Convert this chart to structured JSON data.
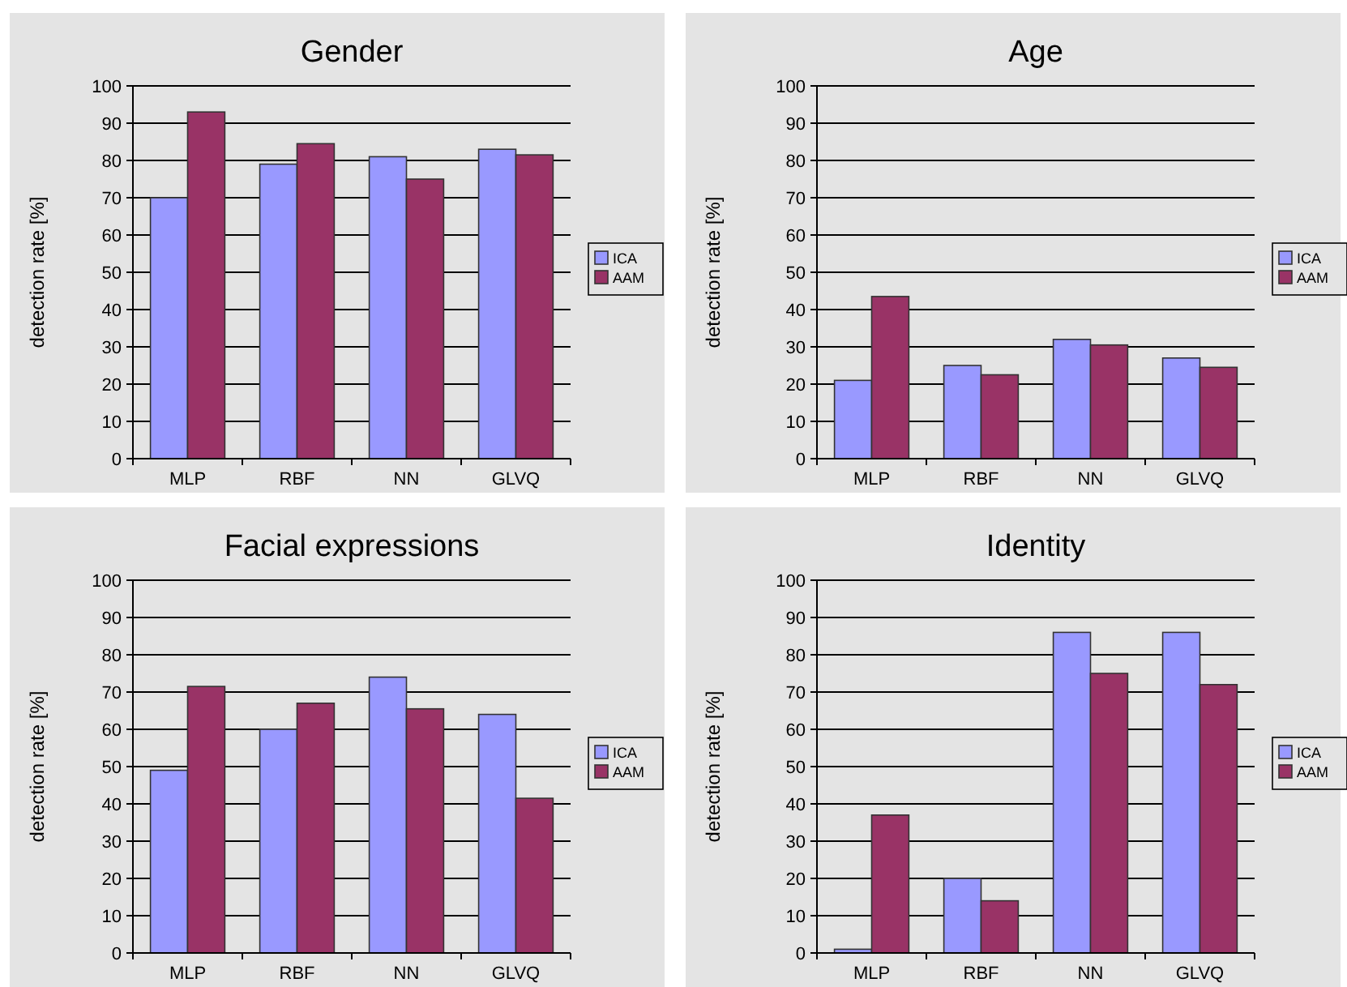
{
  "chart_data": [
    {
      "type": "bar",
      "title": "Gender",
      "ylabel": "detection rate [%]",
      "categories": [
        "MLP",
        "RBF",
        "NN",
        "GLVQ"
      ],
      "series": [
        {
          "name": "ICA",
          "color": "#9999ff",
          "values": [
            70,
            79,
            81,
            83
          ]
        },
        {
          "name": "AAM",
          "color": "#993366",
          "values": [
            93,
            84.5,
            75,
            81.5
          ]
        }
      ],
      "ylim": [
        0,
        100
      ],
      "yticks": [
        0,
        10,
        20,
        30,
        40,
        50,
        60,
        70,
        80,
        90,
        100
      ],
      "grid": "y",
      "legend": "right"
    },
    {
      "type": "bar",
      "title": "Age",
      "ylabel": "detection rate [%]",
      "categories": [
        "MLP",
        "RBF",
        "NN",
        "GLVQ"
      ],
      "series": [
        {
          "name": "ICA",
          "color": "#9999ff",
          "values": [
            21,
            25,
            32,
            27
          ]
        },
        {
          "name": "AAM",
          "color": "#993366",
          "values": [
            43.5,
            22.5,
            30.5,
            24.5
          ]
        }
      ],
      "ylim": [
        0,
        100
      ],
      "yticks": [
        0,
        10,
        20,
        30,
        40,
        50,
        60,
        70,
        80,
        90,
        100
      ],
      "grid": "y",
      "legend": "right"
    },
    {
      "type": "bar",
      "title": "Facial expressions",
      "ylabel": "detection rate [%]",
      "categories": [
        "MLP",
        "RBF",
        "NN",
        "GLVQ"
      ],
      "series": [
        {
          "name": "ICA",
          "color": "#9999ff",
          "values": [
            49,
            60,
            74,
            64
          ]
        },
        {
          "name": "AAM",
          "color": "#993366",
          "values": [
            71.5,
            67,
            65.5,
            41.5
          ]
        }
      ],
      "ylim": [
        0,
        100
      ],
      "yticks": [
        0,
        10,
        20,
        30,
        40,
        50,
        60,
        70,
        80,
        90,
        100
      ],
      "grid": "y",
      "legend": "right"
    },
    {
      "type": "bar",
      "title": "Identity",
      "ylabel": "detection rate [%]",
      "categories": [
        "MLP",
        "RBF",
        "NN",
        "GLVQ"
      ],
      "series": [
        {
          "name": "ICA",
          "color": "#9999ff",
          "values": [
            1,
            20,
            86,
            86
          ]
        },
        {
          "name": "AAM",
          "color": "#993366",
          "values": [
            37,
            14,
            75,
            72
          ]
        }
      ],
      "ylim": [
        0,
        100
      ],
      "yticks": [
        0,
        10,
        20,
        30,
        40,
        50,
        60,
        70,
        80,
        90,
        100
      ],
      "grid": "y",
      "legend": "right"
    }
  ]
}
